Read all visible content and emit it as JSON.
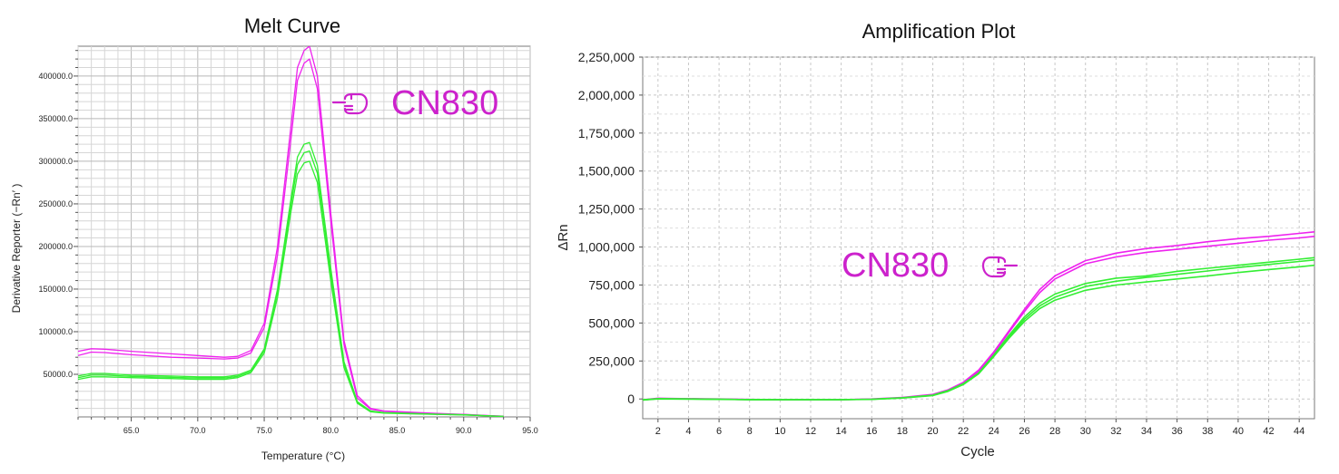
{
  "chart_data": [
    {
      "type": "line",
      "title": "Melt Curve",
      "xlabel": "Temperature (°C)",
      "ylabel": "Derivative Reporter (−Rn′ )",
      "xlim": [
        61,
        95
      ],
      "ylim": [
        0,
        435000
      ],
      "grid": true,
      "x_tick_labels": [
        "65.0",
        "70.0",
        "75.0",
        "80.0",
        "85.0",
        "90.0",
        "95.0"
      ],
      "y_tick_labels": [
        "50000.0",
        "100000.0",
        "150000.0",
        "200000.0",
        "250000.0",
        "300000.0",
        "350000.0",
        "400000.0"
      ],
      "annotation": {
        "text": "CN830",
        "icon": "hand-pointing-left-icon",
        "color": "#cc22cc"
      },
      "series": [
        {
          "color": "#ee22ee",
          "x": [
            61,
            62,
            63,
            65,
            68,
            70,
            72,
            73,
            74,
            75,
            76,
            77,
            77.5,
            78,
            78.4,
            79,
            80,
            81,
            82,
            83,
            84,
            86,
            88,
            90,
            92,
            93
          ],
          "y": [
            77000,
            80000,
            79500,
            77000,
            74000,
            72000,
            70000,
            71000,
            78000,
            110000,
            200000,
            340000,
            410000,
            430000,
            435000,
            400000,
            240000,
            90000,
            25000,
            10000,
            7000,
            5500,
            4000,
            3000,
            1500,
            800
          ]
        },
        {
          "color": "#ee22ee",
          "x": [
            61,
            62,
            63,
            65,
            68,
            70,
            72,
            73,
            74,
            75,
            76,
            77,
            77.5,
            78,
            78.4,
            79,
            80,
            81,
            82,
            83,
            84,
            86,
            88,
            90,
            92,
            93
          ],
          "y": [
            72000,
            76000,
            75500,
            73000,
            70000,
            69000,
            68000,
            69000,
            75000,
            105000,
            190000,
            325000,
            395000,
            415000,
            420000,
            385000,
            230000,
            85000,
            22000,
            9000,
            6500,
            5000,
            3800,
            2800,
            1400,
            700
          ]
        },
        {
          "color": "#33ee33",
          "x": [
            61,
            62,
            63,
            65,
            68,
            70,
            72,
            73,
            74,
            75,
            76,
            77,
            77.5,
            78,
            78.4,
            79,
            80,
            81,
            82,
            83,
            84,
            86,
            88,
            90,
            92,
            93
          ],
          "y": [
            48000,
            51000,
            51000,
            49000,
            48000,
            47000,
            47000,
            49000,
            55000,
            80000,
            150000,
            255000,
            305000,
            320000,
            322000,
            295000,
            175000,
            65000,
            18000,
            7000,
            5000,
            4000,
            3200,
            2500,
            1200,
            600
          ]
        },
        {
          "color": "#33ee33",
          "x": [
            61,
            62,
            63,
            65,
            68,
            70,
            72,
            73,
            74,
            75,
            76,
            77,
            77.5,
            78,
            78.4,
            79,
            80,
            81,
            82,
            83,
            84,
            86,
            88,
            90,
            92,
            93
          ],
          "y": [
            44000,
            47000,
            47000,
            46000,
            45000,
            44000,
            44000,
            46000,
            52000,
            75000,
            140000,
            240000,
            285000,
            298000,
            300000,
            275000,
            160000,
            58000,
            16000,
            6000,
            4500,
            3600,
            3000,
            2300,
            1100,
            500
          ]
        },
        {
          "color": "#33ee33",
          "x": [
            61,
            62,
            63,
            65,
            68,
            70,
            72,
            73,
            74,
            75,
            76,
            77,
            77.5,
            78,
            78.4,
            79,
            80,
            81,
            82,
            83,
            84,
            86,
            88,
            90,
            92,
            93
          ],
          "y": [
            46000,
            49000,
            49000,
            47500,
            46500,
            45500,
            45500,
            47500,
            53500,
            78000,
            146000,
            248000,
            296000,
            310000,
            312000,
            286000,
            168000,
            62000,
            17000,
            6500,
            4800,
            3800,
            3100,
            2400,
            1150,
            550
          ]
        }
      ]
    },
    {
      "type": "line",
      "title": "Amplification Plot",
      "xlabel": "Cycle",
      "ylabel": "ΔRn",
      "xlim": [
        1,
        45
      ],
      "ylim": [
        -130000,
        2250000
      ],
      "grid": true,
      "x_tick_labels": [
        "2",
        "4",
        "6",
        "8",
        "10",
        "12",
        "14",
        "16",
        "18",
        "20",
        "22",
        "24",
        "26",
        "28",
        "30",
        "32",
        "34",
        "36",
        "38",
        "40",
        "42",
        "44"
      ],
      "y_tick_labels": [
        "0",
        "250,000",
        "500,000",
        "750,000",
        "1,000,000",
        "1,250,000",
        "1,500,000",
        "1,750,000",
        "2,000,000",
        "2,250,000"
      ],
      "annotation": {
        "text": "CN830",
        "icon": "hand-pointing-right-icon",
        "color": "#cc22cc"
      },
      "series": [
        {
          "color": "#ee22ee",
          "x": [
            1,
            2,
            4,
            6,
            8,
            10,
            12,
            14,
            16,
            18,
            20,
            21,
            22,
            23,
            24,
            25,
            26,
            27,
            28,
            30,
            32,
            34,
            36,
            38,
            40,
            42,
            44,
            45
          ],
          "y": [
            -5000,
            5000,
            2000,
            0,
            -3000,
            -5000,
            -5000,
            -5000,
            0,
            10000,
            30000,
            60000,
            110000,
            190000,
            310000,
            450000,
            590000,
            720000,
            810000,
            910000,
            960000,
            990000,
            1010000,
            1035000,
            1055000,
            1070000,
            1090000,
            1100000
          ]
        },
        {
          "color": "#ee22ee",
          "x": [
            1,
            2,
            4,
            6,
            8,
            10,
            12,
            14,
            16,
            18,
            20,
            21,
            22,
            23,
            24,
            25,
            26,
            27,
            28,
            30,
            32,
            34,
            36,
            38,
            40,
            42,
            44,
            45
          ],
          "y": [
            -8000,
            3000,
            1000,
            -2000,
            -4000,
            -5000,
            -5000,
            -5000,
            -2000,
            8000,
            28000,
            55000,
            105000,
            180000,
            300000,
            440000,
            575000,
            700000,
            790000,
            890000,
            935000,
            965000,
            985000,
            1005000,
            1025000,
            1045000,
            1060000,
            1070000
          ]
        },
        {
          "color": "#33ee33",
          "x": [
            1,
            2,
            4,
            6,
            8,
            10,
            12,
            14,
            16,
            18,
            20,
            21,
            22,
            23,
            24,
            25,
            26,
            27,
            28,
            30,
            32,
            34,
            36,
            38,
            40,
            42,
            44,
            45
          ],
          "y": [
            -5000,
            2000,
            0,
            -2000,
            -4000,
            -5000,
            -5000,
            -5000,
            -2000,
            8000,
            25000,
            55000,
            100000,
            170000,
            290000,
            420000,
            540000,
            630000,
            690000,
            760000,
            795000,
            810000,
            840000,
            860000,
            880000,
            900000,
            920000,
            930000
          ]
        },
        {
          "color": "#33ee33",
          "x": [
            1,
            2,
            4,
            6,
            8,
            10,
            12,
            14,
            16,
            18,
            20,
            21,
            22,
            23,
            24,
            25,
            26,
            27,
            28,
            30,
            32,
            34,
            36,
            38,
            40,
            42,
            44,
            45
          ],
          "y": [
            -6000,
            1000,
            0,
            -2000,
            -4000,
            -5000,
            -5000,
            -5000,
            -2000,
            7000,
            24000,
            53000,
            98000,
            168000,
            285000,
            410000,
            525000,
            612000,
            670000,
            740000,
            775000,
            800000,
            820000,
            842000,
            865000,
            885000,
            905000,
            915000
          ]
        },
        {
          "color": "#33ee33",
          "x": [
            1,
            2,
            4,
            6,
            8,
            10,
            12,
            14,
            16,
            18,
            20,
            21,
            22,
            23,
            24,
            25,
            26,
            27,
            28,
            30,
            32,
            34,
            36,
            38,
            40,
            42,
            44,
            45
          ],
          "y": [
            -7000,
            0,
            -1000,
            -3000,
            -4000,
            -5000,
            -5000,
            -5000,
            -3000,
            6000,
            22000,
            50000,
            95000,
            165000,
            280000,
            400000,
            510000,
            595000,
            650000,
            715000,
            750000,
            770000,
            790000,
            810000,
            832000,
            852000,
            870000,
            880000
          ]
        }
      ]
    }
  ]
}
